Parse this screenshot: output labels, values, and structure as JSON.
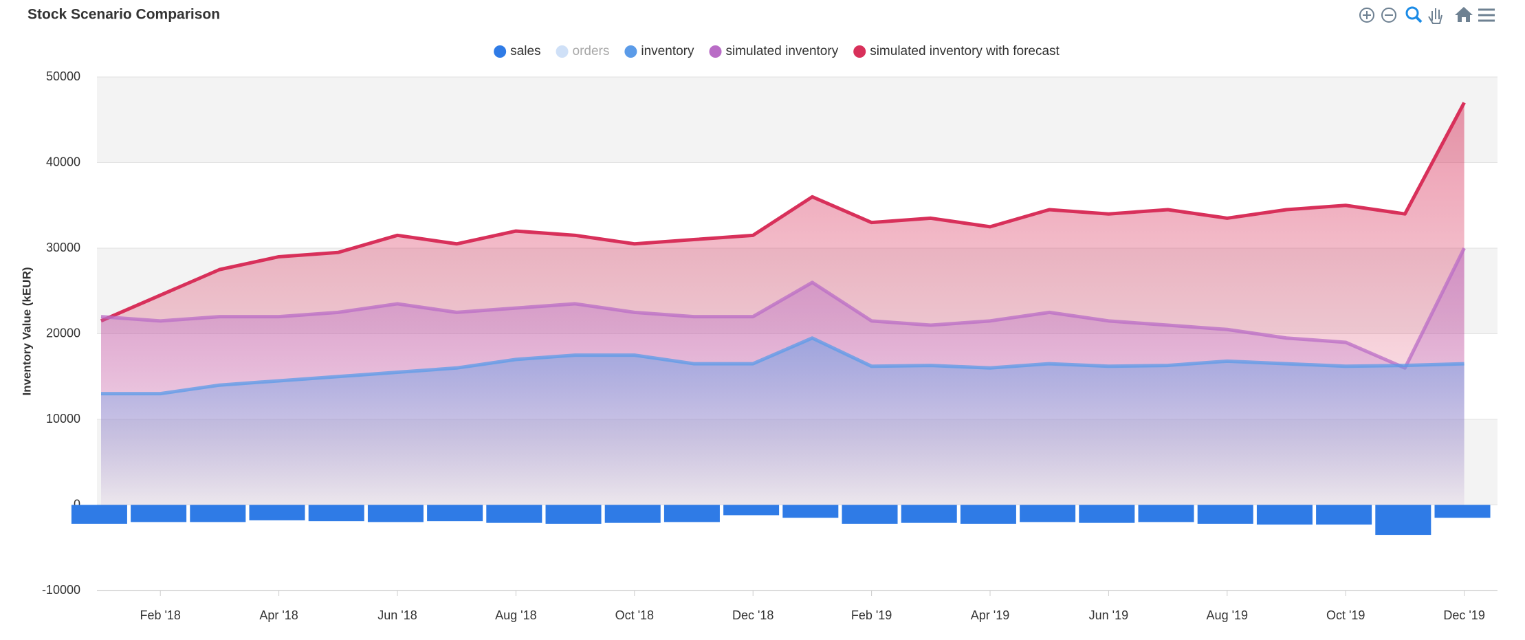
{
  "chart_data": {
    "type": "line",
    "title": "Stock Scenario Comparison",
    "y_label": "Inventory Value (kEUR)",
    "x": [
      "2018-01",
      "2018-02",
      "2018-03",
      "2018-04",
      "2018-05",
      "2018-06",
      "2018-07",
      "2018-08",
      "2018-09",
      "2018-10",
      "2018-11",
      "2018-12",
      "2019-01",
      "2019-02",
      "2019-03",
      "2019-04",
      "2019-05",
      "2019-06",
      "2019-07",
      "2019-08",
      "2019-09",
      "2019-10",
      "2019-11",
      "2019-12"
    ],
    "xticks": [
      {
        "value": "2018-02",
        "label": "Feb '18"
      },
      {
        "value": "2018-04",
        "label": "Apr '18"
      },
      {
        "value": "2018-06",
        "label": "Jun '18"
      },
      {
        "value": "2018-08",
        "label": "Aug '18"
      },
      {
        "value": "2018-10",
        "label": "Oct '18"
      },
      {
        "value": "2018-12",
        "label": "Dec '18"
      },
      {
        "value": "2019-02",
        "label": "Feb '19"
      },
      {
        "value": "2019-04",
        "label": "Apr '19"
      },
      {
        "value": "2019-06",
        "label": "Jun '19"
      },
      {
        "value": "2019-08",
        "label": "Aug '19"
      },
      {
        "value": "2019-10",
        "label": "Oct '19"
      },
      {
        "value": "2019-12",
        "label": "Dec '19"
      }
    ],
    "ylim": [
      -10000,
      50000
    ],
    "yticks": [
      -10000,
      0,
      10000,
      20000,
      30000,
      40000,
      50000
    ],
    "grid": true,
    "legend": "top",
    "series": [
      {
        "name": "sales",
        "type": "bar",
        "color": "#2f7be6",
        "values": [
          -2200,
          -2000,
          -2000,
          -1800,
          -1900,
          -2000,
          -1900,
          -2100,
          -2200,
          -2100,
          -2000,
          -1200,
          -1500,
          -2200,
          -2100,
          -2200,
          -2000,
          -2100,
          -2000,
          -2200,
          -2300,
          -2300,
          -3500,
          -1500
        ]
      },
      {
        "name": "orders",
        "type": "bar",
        "color": "#cfe0f7",
        "hidden": true
      },
      {
        "name": "inventory",
        "type": "area",
        "color": "#5b9be8",
        "values": [
          13000,
          13000,
          14000,
          14500,
          15000,
          15500,
          16000,
          17000,
          17500,
          17500,
          16500,
          16500,
          19500,
          16200,
          16300,
          16000,
          16500,
          16200,
          16300,
          16800,
          16500,
          16200,
          16300,
          16500
        ]
      },
      {
        "name": "simulated inventory",
        "type": "area",
        "color": "#b96cc6",
        "values": [
          22000,
          21500,
          22000,
          22000,
          22500,
          23500,
          22500,
          23000,
          23500,
          22500,
          22000,
          22000,
          26000,
          21500,
          21000,
          21500,
          22500,
          21500,
          21000,
          20500,
          19500,
          19000,
          16000,
          30000
        ]
      },
      {
        "name": "simulated inventory with forecast",
        "type": "area",
        "color": "#d8305a",
        "values": [
          21500,
          24500,
          27500,
          29000,
          29500,
          31500,
          30500,
          32000,
          31500,
          30500,
          31000,
          31500,
          36000,
          33000,
          33500,
          32500,
          34500,
          34000,
          34500,
          33500,
          34500,
          35000,
          34000,
          47000
        ]
      }
    ]
  }
}
